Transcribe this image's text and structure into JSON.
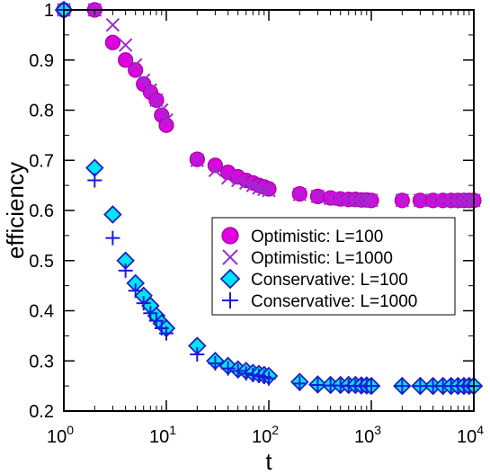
{
  "chart_data": {
    "type": "scatter",
    "title": "",
    "xlabel": "t",
    "ylabel": "efficiency",
    "xscale": "log",
    "xlim": [
      1,
      10000
    ],
    "ylim": [
      0.2,
      1.0
    ],
    "x_ticks": [
      1,
      10,
      100,
      1000,
      10000
    ],
    "x_tick_labels": [
      {
        "base": "10",
        "exp": "0"
      },
      {
        "base": "10",
        "exp": "1"
      },
      {
        "base": "10",
        "exp": "2"
      },
      {
        "base": "10",
        "exp": "3"
      },
      {
        "base": "10",
        "exp": "4"
      }
    ],
    "y_ticks": [
      0.2,
      0.3,
      0.4,
      0.5,
      0.6,
      0.7,
      0.8,
      0.9,
      1.0
    ],
    "y_tick_labels": [
      "0.2",
      "0.3",
      "0.4",
      "0.5",
      "0.6",
      "0.7",
      "0.8",
      "0.9",
      "1"
    ],
    "grid": false,
    "legend_position": "center-right",
    "series": [
      {
        "name": "Optimistic: L=100",
        "marker": "circle",
        "color": "#e000e0",
        "stroke": "#a000a0",
        "x": [
          1,
          2,
          3,
          4,
          5,
          6,
          7,
          8,
          9,
          10,
          20,
          30,
          40,
          50,
          60,
          70,
          80,
          90,
          100,
          200,
          300,
          400,
          500,
          600,
          700,
          800,
          900,
          1000,
          2000,
          3000,
          4000,
          5000,
          6000,
          7000,
          8000,
          9000,
          10000
        ],
        "y": [
          1.0,
          1.0,
          0.935,
          0.9,
          0.88,
          0.852,
          0.836,
          0.82,
          0.79,
          0.77,
          0.702,
          0.69,
          0.676,
          0.667,
          0.66,
          0.655,
          0.65,
          0.647,
          0.643,
          0.633,
          0.628,
          0.625,
          0.623,
          0.622,
          0.622,
          0.621,
          0.621,
          0.62,
          0.62,
          0.62,
          0.62,
          0.62,
          0.62,
          0.62,
          0.62,
          0.62,
          0.62
        ]
      },
      {
        "name": "Optimistic: L=1000",
        "marker": "x",
        "color": "#9b2dcf",
        "x": [
          1,
          2,
          3,
          4,
          5,
          6,
          7,
          8,
          9,
          10,
          20,
          30,
          40,
          50,
          60,
          70,
          80,
          90,
          100,
          200,
          300,
          400,
          500,
          600,
          700,
          800,
          900,
          1000,
          2000,
          3000,
          4000,
          5000,
          6000,
          7000,
          8000,
          9000,
          10000
        ],
        "y": [
          1.0,
          1.0,
          0.97,
          0.93,
          0.89,
          0.86,
          0.84,
          0.82,
          0.8,
          0.78,
          0.7,
          0.68,
          0.665,
          0.66,
          0.655,
          0.65,
          0.645,
          0.642,
          0.64,
          0.632,
          0.628,
          0.624,
          0.622,
          0.621,
          0.621,
          0.62,
          0.62,
          0.62,
          0.62,
          0.62,
          0.62,
          0.62,
          0.62,
          0.62,
          0.62,
          0.62,
          0.62
        ]
      },
      {
        "name": "Conservative: L=100",
        "marker": "diamond",
        "color": "#00e5ee",
        "stroke": "#2020c0",
        "x": [
          1,
          2,
          3,
          4,
          5,
          6,
          7,
          8,
          9,
          10,
          20,
          30,
          40,
          50,
          60,
          70,
          80,
          90,
          100,
          200,
          300,
          400,
          500,
          600,
          700,
          800,
          900,
          1000,
          2000,
          3000,
          4000,
          5000,
          6000,
          7000,
          8000,
          9000,
          10000
        ],
        "y": [
          1.0,
          0.685,
          0.592,
          0.5,
          0.455,
          0.43,
          0.41,
          0.39,
          0.375,
          0.365,
          0.33,
          0.3,
          0.29,
          0.283,
          0.28,
          0.276,
          0.274,
          0.272,
          0.27,
          0.258,
          0.253,
          0.252,
          0.252,
          0.252,
          0.252,
          0.251,
          0.251,
          0.25,
          0.25,
          0.25,
          0.25,
          0.25,
          0.25,
          0.25,
          0.25,
          0.25,
          0.25
        ]
      },
      {
        "name": "Conservative: L=1000",
        "marker": "plus",
        "color": "#1a1ae0",
        "x": [
          1,
          2,
          3,
          4,
          5,
          6,
          7,
          8,
          9,
          10,
          20,
          30,
          40,
          50,
          60,
          70,
          80,
          90,
          100,
          200,
          300,
          400,
          500,
          600,
          700,
          800,
          900,
          1000,
          2000,
          3000,
          4000,
          5000,
          6000,
          7000,
          8000,
          9000,
          10000
        ],
        "y": [
          1.0,
          0.66,
          0.545,
          0.48,
          0.44,
          0.415,
          0.395,
          0.38,
          0.365,
          0.355,
          0.313,
          0.295,
          0.285,
          0.28,
          0.275,
          0.272,
          0.27,
          0.268,
          0.265,
          0.255,
          0.252,
          0.251,
          0.251,
          0.25,
          0.25,
          0.25,
          0.25,
          0.25,
          0.25,
          0.25,
          0.25,
          0.25,
          0.25,
          0.25,
          0.25,
          0.25,
          0.25
        ]
      }
    ]
  }
}
